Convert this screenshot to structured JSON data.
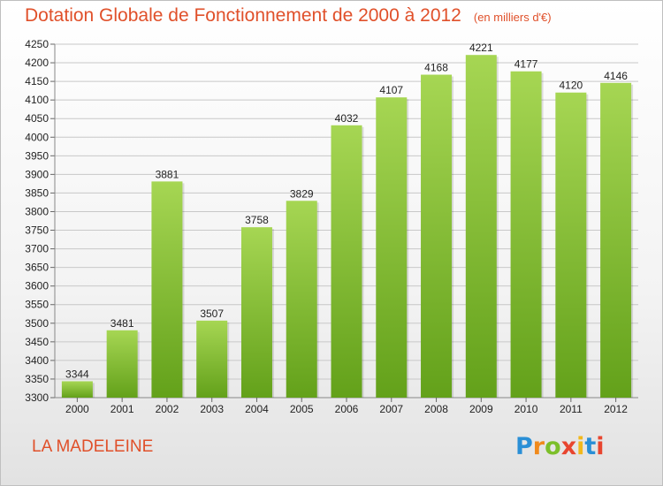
{
  "header": {
    "title": "Dotation Globale de Fonctionnement de 2000 à 2012",
    "unit": "(en milliers d'€)"
  },
  "commune": "LA MADELEINE",
  "logo": {
    "text": "Proxiti",
    "colors": [
      "#2a8fd6",
      "#f08a1c",
      "#7cbf2a",
      "#e8452f",
      "#f2b81b",
      "#2a8fd6",
      "#e8452f"
    ]
  },
  "colors": {
    "bar_top": "#a6d653",
    "bar_bottom": "#63a11a",
    "grid": "#c8c8c8",
    "axis_text": "#222222",
    "accent": "#e0502a"
  },
  "chart_data": {
    "type": "bar",
    "categories": [
      "2000",
      "2001",
      "2002",
      "2003",
      "2004",
      "2005",
      "2006",
      "2007",
      "2008",
      "2009",
      "2010",
      "2011",
      "2012"
    ],
    "values": [
      3344,
      3481,
      3881,
      3507,
      3758,
      3829,
      4032,
      4107,
      4168,
      4221,
      4177,
      4120,
      4146
    ],
    "title": "Dotation Globale de Fonctionnement de 2000 à 2012",
    "xlabel": "",
    "ylabel": "",
    "ylim": [
      3300,
      4250
    ],
    "yticks": [
      3300,
      3350,
      3400,
      3450,
      3500,
      3550,
      3600,
      3650,
      3700,
      3750,
      3800,
      3850,
      3900,
      3950,
      4000,
      4050,
      4100,
      4150,
      4200,
      4250
    ],
    "grid": true
  }
}
